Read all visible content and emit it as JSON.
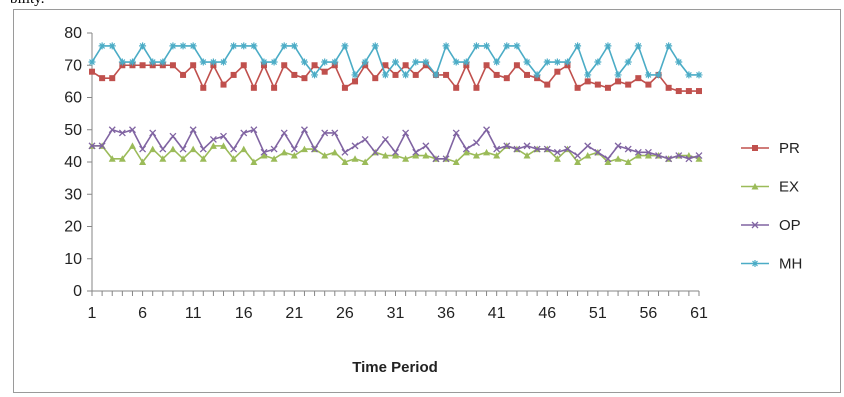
{
  "page": {
    "top_text": "bility."
  },
  "chart_data": {
    "type": "line",
    "title": "",
    "xlabel": "Time Period",
    "ylabel": "",
    "ylim": [
      0,
      80
    ],
    "yticks": [
      0,
      10,
      20,
      30,
      40,
      50,
      60,
      70,
      80
    ],
    "xticks": [
      1,
      6,
      11,
      16,
      21,
      26,
      31,
      36,
      41,
      46,
      51,
      56,
      61
    ],
    "grid": false,
    "legend_position": "right",
    "x": [
      1,
      2,
      3,
      4,
      5,
      6,
      7,
      8,
      9,
      10,
      11,
      12,
      13,
      14,
      15,
      16,
      17,
      18,
      19,
      20,
      21,
      22,
      23,
      24,
      25,
      26,
      27,
      28,
      29,
      30,
      31,
      32,
      33,
      34,
      35,
      36,
      37,
      38,
      39,
      40,
      41,
      42,
      43,
      44,
      45,
      46,
      47,
      48,
      49,
      50,
      51,
      52,
      53,
      54,
      55,
      56,
      57,
      58,
      59,
      60,
      61
    ],
    "series": [
      {
        "name": "PR",
        "color": "#c0504d",
        "marker": "square",
        "values": [
          68,
          66,
          66,
          70,
          70,
          70,
          70,
          70,
          70,
          67,
          70,
          63,
          70,
          64,
          67,
          70,
          63,
          70,
          63,
          70,
          67,
          66,
          70,
          68,
          70,
          63,
          65,
          70,
          66,
          70,
          67,
          70,
          67,
          70,
          67,
          67,
          63,
          70,
          63,
          70,
          67,
          66,
          70,
          67,
          66,
          64,
          68,
          70,
          63,
          65,
          64,
          63,
          65,
          64,
          66,
          64,
          67,
          63,
          62,
          62,
          62
        ]
      },
      {
        "name": "EX",
        "color": "#9bbb59",
        "marker": "triangle",
        "values": [
          45,
          45,
          41,
          41,
          45,
          40,
          44,
          41,
          44,
          41,
          44,
          41,
          45,
          45,
          41,
          44,
          40,
          42,
          41,
          43,
          42,
          44,
          44,
          42,
          43,
          40,
          41,
          40,
          43,
          42,
          42,
          41,
          42,
          42,
          41,
          41,
          40,
          43,
          42,
          43,
          42,
          45,
          44,
          42,
          44,
          44,
          41,
          44,
          40,
          42,
          43,
          40,
          41,
          40,
          42,
          42,
          42,
          41,
          42,
          42,
          41
        ]
      },
      {
        "name": "OP",
        "color": "#8064a2",
        "marker": "x",
        "values": [
          45,
          45,
          50,
          49,
          50,
          44,
          49,
          44,
          48,
          44,
          50,
          44,
          47,
          48,
          44,
          49,
          50,
          43,
          44,
          49,
          44,
          50,
          44,
          49,
          49,
          43,
          45,
          47,
          43,
          47,
          43,
          49,
          43,
          45,
          41,
          41,
          49,
          44,
          46,
          50,
          44,
          45,
          44,
          45,
          44,
          44,
          43,
          44,
          42,
          45,
          43,
          41,
          45,
          44,
          43,
          43,
          42,
          41,
          42,
          41,
          42
        ]
      },
      {
        "name": "MH",
        "color": "#4bacc6",
        "marker": "star",
        "values": [
          71,
          76,
          76,
          71,
          71,
          76,
          71,
          71,
          76,
          76,
          76,
          71,
          71,
          71,
          76,
          76,
          76,
          71,
          71,
          76,
          76,
          71,
          67,
          71,
          71,
          76,
          67,
          71,
          76,
          67,
          71,
          67,
          71,
          71,
          67,
          76,
          71,
          71,
          76,
          76,
          71,
          76,
          76,
          71,
          67,
          71,
          71,
          71,
          76,
          67,
          71,
          76,
          67,
          71,
          76,
          67,
          67,
          76,
          71,
          67,
          67
        ]
      }
    ]
  }
}
